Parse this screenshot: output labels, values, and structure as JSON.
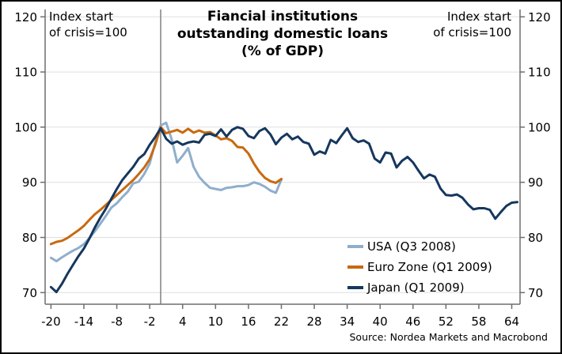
{
  "title": {
    "line1": "Fiancial institutions",
    "line2": "outstanding domestic loans",
    "line3": "(% of GDP)"
  },
  "index_note": {
    "line1": "Index start",
    "line2": "of crisis=100"
  },
  "source": "Source: Nordea Markets and Macrobond",
  "legend": [
    {
      "label": "USA (Q3 2008)",
      "color": "#8FAECB"
    },
    {
      "label": "Euro Zone (Q1 2009)",
      "color": "#C8690F"
    },
    {
      "label": "Japan (Q1 2009)",
      "color": "#16375E"
    }
  ],
  "colors": {
    "grid": "#DDDFE0",
    "axis": "#6E6E6E",
    "zero_line": "#808080",
    "border": "#000000"
  },
  "chart_data": {
    "type": "line",
    "title": "Fiancial institutions outstanding domestic loans (% of GDP)",
    "xlabel": "",
    "ylabel": "Index start of crisis=100",
    "xlim": [
      -21.1,
      65.5
    ],
    "ylim": [
      67.8,
      122.4
    ],
    "xticks": [
      -20,
      -14,
      -8,
      -2,
      4,
      10,
      16,
      22,
      28,
      34,
      40,
      46,
      52,
      58,
      64
    ],
    "yticks": [
      70,
      80,
      90,
      100,
      110,
      120
    ],
    "grid": true,
    "zero_vline": true,
    "legend_position": "lower right",
    "x_unit": "quarters relative to crisis start",
    "series": [
      {
        "name": "USA (Q3 2008)",
        "color": "#8FAECB",
        "points": [
          [
            -20,
            76.3
          ],
          [
            -19,
            75.7
          ],
          [
            -18,
            76.4
          ],
          [
            -17,
            77.0
          ],
          [
            -16,
            77.6
          ],
          [
            -15,
            78.1
          ],
          [
            -14,
            78.8
          ],
          [
            -13,
            79.9
          ],
          [
            -12,
            81.1
          ],
          [
            -11,
            82.5
          ],
          [
            -10,
            83.9
          ],
          [
            -9,
            85.4
          ],
          [
            -8,
            86.2
          ],
          [
            -7,
            87.3
          ],
          [
            -6,
            88.3
          ],
          [
            -5,
            89.8
          ],
          [
            -4,
            90.1
          ],
          [
            -3,
            91.5
          ],
          [
            -2,
            93.4
          ],
          [
            -1,
            97.2
          ],
          [
            0,
            100.3
          ],
          [
            1,
            100.8
          ],
          [
            2,
            97.8
          ],
          [
            3,
            93.6
          ],
          [
            4,
            94.8
          ],
          [
            5,
            96.2
          ],
          [
            6,
            92.8
          ],
          [
            7,
            91.0
          ],
          [
            8,
            89.9
          ],
          [
            9,
            89.0
          ],
          [
            10,
            88.8
          ],
          [
            11,
            88.6
          ],
          [
            12,
            89.0
          ],
          [
            13,
            89.1
          ],
          [
            14,
            89.3
          ],
          [
            15,
            89.3
          ],
          [
            16,
            89.5
          ],
          [
            17,
            90.0
          ],
          [
            18,
            89.7
          ],
          [
            19,
            89.2
          ],
          [
            20,
            88.5
          ],
          [
            21,
            88.1
          ],
          [
            22,
            90.5
          ]
        ]
      },
      {
        "name": "Euro Zone (Q1 2009)",
        "color": "#C8690F",
        "points": [
          [
            -20,
            78.8
          ],
          [
            -19,
            79.2
          ],
          [
            -18,
            79.4
          ],
          [
            -17,
            79.9
          ],
          [
            -16,
            80.6
          ],
          [
            -15,
            81.3
          ],
          [
            -14,
            82.1
          ],
          [
            -13,
            83.2
          ],
          [
            -12,
            84.2
          ],
          [
            -11,
            85.0
          ],
          [
            -10,
            85.9
          ],
          [
            -9,
            86.8
          ],
          [
            -8,
            87.7
          ],
          [
            -7,
            88.6
          ],
          [
            -6,
            89.5
          ],
          [
            -5,
            90.4
          ],
          [
            -4,
            91.5
          ],
          [
            -3,
            92.7
          ],
          [
            -2,
            94.2
          ],
          [
            -1,
            96.8
          ],
          [
            0,
            100.0
          ],
          [
            1,
            98.9
          ],
          [
            2,
            99.2
          ],
          [
            3,
            99.5
          ],
          [
            4,
            99.0
          ],
          [
            5,
            99.7
          ],
          [
            6,
            99.0
          ],
          [
            7,
            99.4
          ],
          [
            8,
            99.0
          ],
          [
            9,
            99.1
          ],
          [
            10,
            98.5
          ],
          [
            11,
            97.8
          ],
          [
            12,
            98.0
          ],
          [
            13,
            97.5
          ],
          [
            14,
            96.4
          ],
          [
            15,
            96.3
          ],
          [
            16,
            95.2
          ],
          [
            17,
            93.4
          ],
          [
            18,
            91.9
          ],
          [
            19,
            90.8
          ],
          [
            20,
            90.2
          ],
          [
            21,
            89.9
          ],
          [
            22,
            90.6
          ]
        ]
      },
      {
        "name": "Japan (Q1 2009)",
        "color": "#16375E",
        "points": [
          [
            -20,
            71.0
          ],
          [
            -19,
            70.1
          ],
          [
            -18,
            71.6
          ],
          [
            -17,
            73.4
          ],
          [
            -16,
            75.0
          ],
          [
            -15,
            76.6
          ],
          [
            -14,
            78.0
          ],
          [
            -13,
            79.8
          ],
          [
            -12,
            81.8
          ],
          [
            -11,
            83.6
          ],
          [
            -10,
            85.2
          ],
          [
            -9,
            87.0
          ],
          [
            -8,
            88.8
          ],
          [
            -7,
            90.4
          ],
          [
            -6,
            91.6
          ],
          [
            -5,
            92.8
          ],
          [
            -4,
            94.3
          ],
          [
            -3,
            95.1
          ],
          [
            -2,
            96.8
          ],
          [
            -1,
            98.2
          ],
          [
            0,
            99.8
          ],
          [
            1,
            97.9
          ],
          [
            2,
            97.0
          ],
          [
            3,
            97.4
          ],
          [
            4,
            96.8
          ],
          [
            5,
            97.2
          ],
          [
            6,
            97.4
          ],
          [
            7,
            97.2
          ],
          [
            8,
            98.6
          ],
          [
            9,
            98.8
          ],
          [
            10,
            98.4
          ],
          [
            11,
            99.6
          ],
          [
            12,
            98.3
          ],
          [
            13,
            99.5
          ],
          [
            14,
            100.0
          ],
          [
            15,
            99.7
          ],
          [
            16,
            98.4
          ],
          [
            17,
            98.0
          ],
          [
            18,
            99.3
          ],
          [
            19,
            99.8
          ],
          [
            20,
            98.7
          ],
          [
            21,
            96.9
          ],
          [
            22,
            98.1
          ],
          [
            23,
            98.8
          ],
          [
            24,
            97.8
          ],
          [
            25,
            98.3
          ],
          [
            26,
            97.3
          ],
          [
            27,
            97.0
          ],
          [
            28,
            95.0
          ],
          [
            29,
            95.6
          ],
          [
            30,
            95.2
          ],
          [
            31,
            97.7
          ],
          [
            32,
            97.1
          ],
          [
            33,
            98.5
          ],
          [
            34,
            99.8
          ],
          [
            35,
            98.0
          ],
          [
            36,
            97.3
          ],
          [
            37,
            97.6
          ],
          [
            38,
            97.0
          ],
          [
            39,
            94.3
          ],
          [
            40,
            93.6
          ],
          [
            41,
            95.4
          ],
          [
            42,
            95.2
          ],
          [
            43,
            92.7
          ],
          [
            44,
            93.9
          ],
          [
            45,
            94.6
          ],
          [
            46,
            93.6
          ],
          [
            47,
            92.1
          ],
          [
            48,
            90.7
          ],
          [
            49,
            91.4
          ],
          [
            50,
            91.0
          ],
          [
            51,
            88.9
          ],
          [
            52,
            87.7
          ],
          [
            53,
            87.6
          ],
          [
            54,
            87.8
          ],
          [
            55,
            87.2
          ],
          [
            56,
            86.0
          ],
          [
            57,
            85.1
          ],
          [
            58,
            85.3
          ],
          [
            59,
            85.3
          ],
          [
            60,
            85.0
          ],
          [
            61,
            83.4
          ],
          [
            62,
            84.6
          ],
          [
            63,
            85.7
          ],
          [
            64,
            86.3
          ],
          [
            65,
            86.4
          ]
        ]
      }
    ]
  }
}
